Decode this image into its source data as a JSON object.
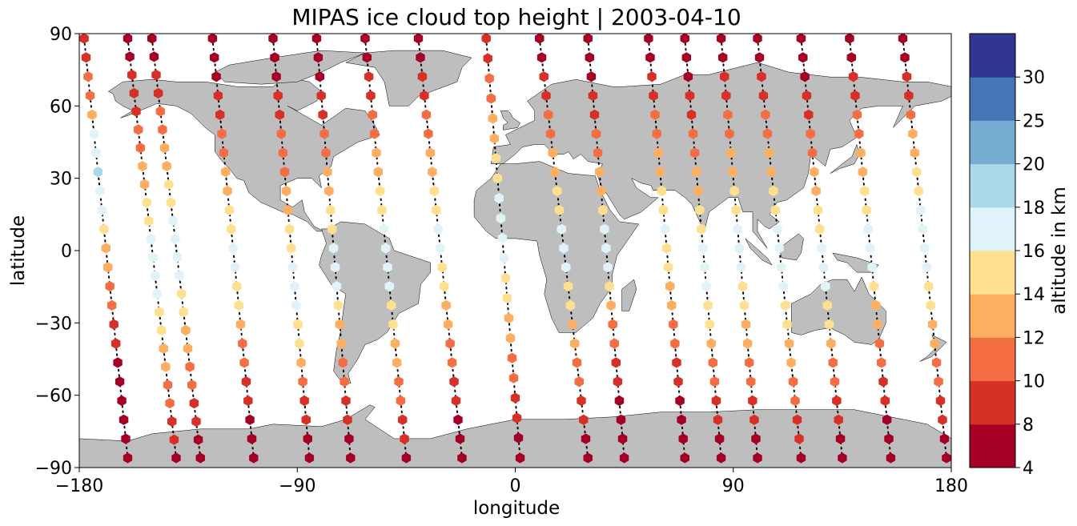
{
  "chart_data": {
    "type": "scatter",
    "title": "MIPAS ice cloud top height | 2003-04-10",
    "xlabel": "longitude",
    "ylabel": "latitude",
    "xlim": [
      -180,
      180
    ],
    "ylim": [
      -90,
      90
    ],
    "xticks": [
      -180,
      -90,
      0,
      90,
      180
    ],
    "yticks": [
      -90,
      -60,
      -30,
      0,
      30,
      60,
      90
    ],
    "xtick_labels": [
      "−180",
      "−90",
      "0",
      "90",
      "180"
    ],
    "ytick_labels": [
      "−90",
      "−60",
      "−30",
      "0",
      "30",
      "60",
      "90"
    ],
    "colorbar": {
      "label": "altitude in km",
      "bounds": [
        4,
        8,
        10,
        12,
        14,
        16,
        18,
        20,
        25,
        30
      ],
      "tick_labels": [
        "4",
        "8",
        "10",
        "12",
        "14",
        "16",
        "18",
        "20",
        "25",
        "30"
      ],
      "colors": [
        "#a50026",
        "#d73027",
        "#f46d43",
        "#fdae61",
        "#fee090",
        "#e0f3f8",
        "#abd9e9",
        "#74add1",
        "#4575b4",
        "#313695"
      ]
    },
    "map": {
      "land_color": "#bebebe",
      "ocean_color": "#ffffff"
    },
    "tracks": [
      {
        "lon_start": -178,
        "lon_end": -160,
        "heights": [
          9,
          9,
          10,
          11,
          12,
          17,
          17,
          18,
          17,
          17,
          14,
          13,
          12,
          11,
          10,
          9,
          8,
          7,
          7,
          7,
          7,
          7,
          7
        ]
      },
      {
        "lon_start": -160,
        "lon_end": -140,
        "heights": [
          7,
          7,
          8,
          8,
          9,
          10,
          11,
          12,
          13,
          14,
          15,
          16,
          17,
          17,
          16,
          15,
          14,
          13,
          12,
          11,
          10,
          9,
          8,
          7
        ]
      },
      {
        "lon_start": -150,
        "lon_end": -130,
        "heights": [
          7,
          7,
          8,
          9,
          10,
          11,
          12,
          13,
          14,
          15,
          16,
          17,
          17,
          16,
          15,
          14,
          13,
          12,
          11,
          10,
          9,
          8,
          7,
          7
        ]
      },
      {
        "lon_start": -125,
        "lon_end": -108,
        "heights": [
          7,
          7,
          7,
          8,
          9,
          10,
          11,
          12,
          13,
          14,
          15,
          16,
          16,
          15,
          14,
          12,
          11,
          10,
          9,
          8,
          7,
          7,
          7
        ]
      },
      {
        "lon_start": -100,
        "lon_end": -85,
        "heights": [
          7,
          7,
          7,
          8,
          9,
          10,
          10,
          11,
          12,
          13,
          14,
          15,
          16,
          17,
          16,
          15,
          14,
          12,
          10,
          9,
          8,
          7,
          7
        ]
      },
      {
        "lon_start": -82,
        "lon_end": -68,
        "heights": [
          7,
          7,
          7,
          8,
          9,
          10,
          11,
          12,
          13,
          14,
          15,
          17,
          17,
          16,
          15,
          13,
          12,
          11,
          10,
          9,
          8,
          7,
          7
        ]
      },
      {
        "lon_start": -62,
        "lon_end": -45,
        "heights": [
          7,
          7,
          8,
          9,
          10,
          11,
          12,
          13,
          14,
          15,
          16,
          17,
          17,
          16,
          15,
          14,
          13,
          12,
          11,
          10,
          9,
          8,
          7
        ]
      },
      {
        "lon_start": -40,
        "lon_end": -22,
        "heights": [
          7,
          7,
          8,
          9,
          10,
          11,
          12,
          13,
          14,
          15,
          16,
          16,
          15,
          14,
          13,
          12,
          11,
          10,
          9,
          8,
          7,
          7,
          7
        ]
      },
      {
        "lon_start": -12,
        "lon_end": 2,
        "heights": [
          8,
          9,
          10,
          11,
          12,
          13,
          14,
          15,
          16,
          17,
          17,
          16,
          15,
          14,
          13,
          12,
          11,
          10,
          9,
          8,
          7,
          7
        ]
      },
      {
        "lon_start": 10,
        "lon_end": 30,
        "heights": [
          7,
          7,
          8,
          9,
          10,
          11,
          12,
          13,
          14,
          15,
          16,
          17,
          16,
          15,
          14,
          13,
          12,
          11,
          10,
          9,
          8,
          7,
          7
        ]
      },
      {
        "lon_start": 30,
        "lon_end": 45,
        "heights": [
          7,
          7,
          7,
          8,
          9,
          10,
          11,
          12,
          13,
          14,
          16,
          17,
          16,
          14,
          12,
          11,
          10,
          9,
          8,
          7,
          7,
          7,
          7
        ]
      },
      {
        "lon_start": 55,
        "lon_end": 70,
        "heights": [
          7,
          7,
          8,
          9,
          10,
          11,
          12,
          13,
          14,
          15,
          16,
          15,
          14,
          13,
          12,
          11,
          10,
          9,
          8,
          7,
          7,
          7,
          7
        ]
      },
      {
        "lon_start": 70,
        "lon_end": 85,
        "heights": [
          7,
          7,
          7,
          8,
          9,
          10,
          11,
          12,
          13,
          14,
          15,
          16,
          17,
          16,
          15,
          14,
          12,
          11,
          10,
          9,
          8,
          7,
          7
        ]
      },
      {
        "lon_start": 85,
        "lon_end": 100,
        "heights": [
          7,
          7,
          8,
          9,
          10,
          11,
          12,
          13,
          14,
          15,
          16,
          17,
          16,
          15,
          14,
          13,
          12,
          11,
          10,
          9,
          8,
          7,
          7
        ]
      },
      {
        "lon_start": 100,
        "lon_end": 118,
        "heights": [
          7,
          7,
          8,
          9,
          10,
          11,
          12,
          13,
          14,
          15,
          16,
          17,
          17,
          16,
          15,
          14,
          13,
          12,
          11,
          10,
          9,
          8,
          7
        ]
      },
      {
        "lon_start": 118,
        "lon_end": 135,
        "heights": [
          7,
          7,
          7,
          8,
          9,
          10,
          11,
          12,
          13,
          14,
          15,
          16,
          17,
          16,
          15,
          14,
          12,
          11,
          10,
          9,
          8,
          7,
          7
        ]
      },
      {
        "lon_start": 138,
        "lon_end": 155,
        "heights": [
          7,
          7,
          8,
          9,
          10,
          11,
          12,
          13,
          14,
          15,
          16,
          17,
          16,
          15,
          13,
          12,
          11,
          10,
          9,
          8,
          7,
          7,
          7
        ]
      },
      {
        "lon_start": 160,
        "lon_end": 178,
        "heights": [
          7,
          7,
          8,
          9,
          10,
          12,
          13,
          14,
          15,
          16,
          17,
          17,
          16,
          15,
          14,
          13,
          12,
          11,
          10,
          9,
          8,
          7,
          7
        ]
      }
    ]
  }
}
